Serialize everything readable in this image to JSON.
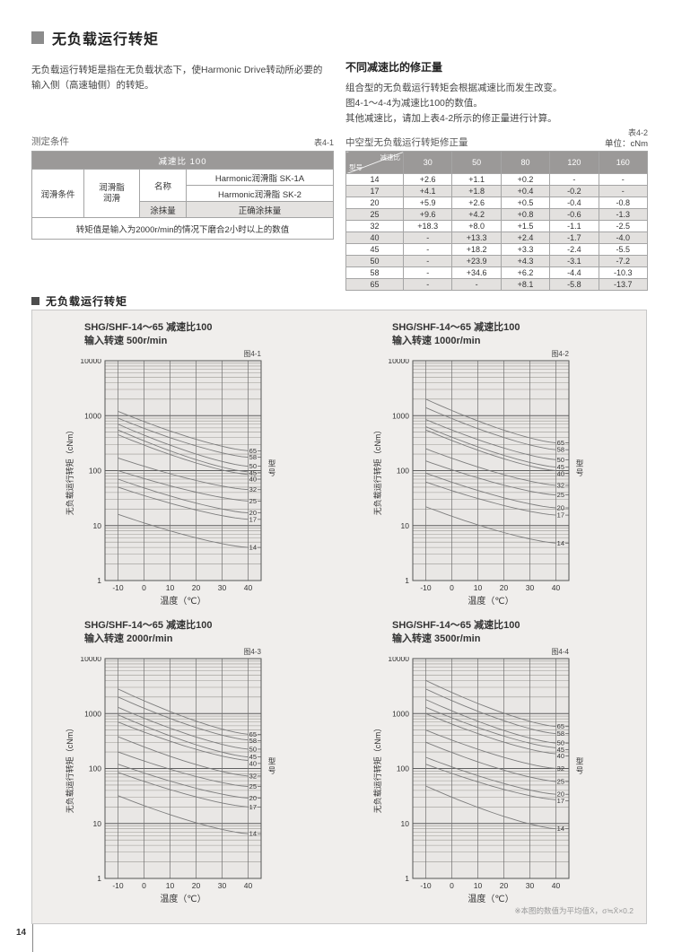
{
  "page": {
    "number": "14"
  },
  "header": {
    "title": "无负载运行转矩",
    "intro": "无负载运行转矩是指在无负载状态下，使Harmonic Drive转动所必要的输入侧（高速轴侧）的转矩。",
    "right_heading": "不同减速比的修正量",
    "right_lines": [
      "组合型的无负载运行转矩会根据减速比而发生改变。",
      "图4-1～4-4为减速比100的数值。",
      "其他减速比，请加上表4-2所示的修正量进行计算。"
    ]
  },
  "table1": {
    "label": "表4-1",
    "title": "测定条件",
    "header": "减速比 100",
    "col1": "润滑条件",
    "col2": "润滑脂\n润滑",
    "name_label": "名称",
    "name_values": [
      "Harmonic润滑脂 SK-1A",
      "Harmonic润滑脂 SK-2"
    ],
    "amount_label": "涂抹量",
    "amount_value": "正确涂抹量",
    "footer": "转矩值是输入为2000r/min的情况下磨合2小时以上的数值"
  },
  "table2": {
    "label": "表4-2",
    "title": "中空型无负载运行转矩修正量",
    "unit": "单位：cNm",
    "corner_top": "减速比",
    "corner_bottom": "型号",
    "columns": [
      "30",
      "50",
      "80",
      "120",
      "160"
    ],
    "rows": [
      {
        "model": "14",
        "values": [
          "+2.6",
          "+1.1",
          "+0.2",
          "-",
          "-"
        ]
      },
      {
        "model": "17",
        "values": [
          "+4.1",
          "+1.8",
          "+0.4",
          "-0.2",
          "-"
        ]
      },
      {
        "model": "20",
        "values": [
          "+5.9",
          "+2.6",
          "+0.5",
          "-0.4",
          "-0.8"
        ]
      },
      {
        "model": "25",
        "values": [
          "+9.6",
          "+4.2",
          "+0.8",
          "-0.6",
          "-1.3"
        ]
      },
      {
        "model": "32",
        "values": [
          "+18.3",
          "+8.0",
          "+1.5",
          "-1.1",
          "-2.5"
        ]
      },
      {
        "model": "40",
        "values": [
          "-",
          "+13.3",
          "+2.4",
          "-1.7",
          "-4.0"
        ]
      },
      {
        "model": "45",
        "values": [
          "-",
          "+18.2",
          "+3.3",
          "-2.4",
          "-5.5"
        ]
      },
      {
        "model": "50",
        "values": [
          "-",
          "+23.9",
          "+4.3",
          "-3.1",
          "-7.2"
        ]
      },
      {
        "model": "58",
        "values": [
          "-",
          "+34.6",
          "+6.2",
          "-4.4",
          "-10.3"
        ]
      },
      {
        "model": "65",
        "values": [
          "-",
          "-",
          "+8.1",
          "-5.8",
          "-13.7"
        ]
      }
    ]
  },
  "charts_section": {
    "heading": "无负载运行转矩",
    "footnote": "※本图的数值为平均值X̄，σ≒X̄×0.2"
  },
  "chart_data": [
    {
      "type": "line",
      "fig_label": "图4-1",
      "title_line1": "SHG/SHF-14～65 减速比100",
      "title_line2": "输入转速 500r/min",
      "xlabel": "温度（℃）",
      "ylabel": "无负载运行转矩（cNm）",
      "right_label": "型号",
      "xlim": [
        -15,
        45
      ],
      "x_ticks": [
        -10,
        0,
        10,
        20,
        30,
        40
      ],
      "ylim": [
        1,
        10000
      ],
      "yscale": "log",
      "y_ticks": [
        1,
        10,
        100,
        1000,
        10000
      ],
      "x": [
        -10,
        40
      ],
      "series": [
        {
          "name": "65",
          "values": [
            1200,
            230
          ]
        },
        {
          "name": "58",
          "values": [
            900,
            175
          ]
        },
        {
          "name": "50",
          "values": [
            700,
            120
          ]
        },
        {
          "name": "45",
          "values": [
            550,
            95
          ]
        },
        {
          "name": "40",
          "values": [
            450,
            85
          ]
        },
        {
          "name": "32",
          "values": [
            170,
            45
          ]
        },
        {
          "name": "25",
          "values": [
            100,
            28
          ]
        },
        {
          "name": "20",
          "values": [
            70,
            17
          ]
        },
        {
          "name": "17",
          "values": [
            50,
            13
          ]
        },
        {
          "name": "14",
          "values": [
            16,
            4
          ]
        }
      ]
    },
    {
      "type": "line",
      "fig_label": "图4-2",
      "title_line1": "SHG/SHF-14～65 减速比100",
      "title_line2": "输入转速 1000r/min",
      "xlabel": "温度（℃）",
      "ylabel": "无负载运行转矩（cNm）",
      "right_label": "型号",
      "xlim": [
        -15,
        45
      ],
      "x_ticks": [
        -10,
        0,
        10,
        20,
        30,
        40
      ],
      "ylim": [
        1,
        10000
      ],
      "yscale": "log",
      "y_ticks": [
        1,
        10,
        100,
        1000,
        10000
      ],
      "x": [
        -10,
        40
      ],
      "series": [
        {
          "name": "65",
          "values": [
            2000,
            320
          ]
        },
        {
          "name": "58",
          "values": [
            1400,
            240
          ]
        },
        {
          "name": "50",
          "values": [
            850,
            158
          ]
        },
        {
          "name": "45",
          "values": [
            630,
            116
          ]
        },
        {
          "name": "40",
          "values": [
            550,
            100
          ]
        },
        {
          "name": "32",
          "values": [
            250,
            54
          ]
        },
        {
          "name": "25",
          "values": [
            150,
            36
          ]
        },
        {
          "name": "20",
          "values": [
            90,
            21
          ]
        },
        {
          "name": "17",
          "values": [
            62,
            15.5
          ]
        },
        {
          "name": "14",
          "values": [
            22,
            4.8
          ]
        }
      ]
    },
    {
      "type": "line",
      "fig_label": "图4-3",
      "title_line1": "SHG/SHF-14～65 减速比100",
      "title_line2": "输入转速 2000r/min",
      "xlabel": "温度（℃）",
      "ylabel": "无负载运行转矩（cNm）",
      "right_label": "型号",
      "xlim": [
        -15,
        45
      ],
      "x_ticks": [
        -10,
        0,
        10,
        20,
        30,
        40
      ],
      "ylim": [
        1,
        10000
      ],
      "yscale": "log",
      "y_ticks": [
        1,
        10,
        100,
        1000,
        10000
      ],
      "x": [
        -10,
        40
      ],
      "series": [
        {
          "name": "65",
          "values": [
            2800,
            420
          ]
        },
        {
          "name": "58",
          "values": [
            2000,
            330
          ]
        },
        {
          "name": "50",
          "values": [
            1300,
            225
          ]
        },
        {
          "name": "45",
          "values": [
            950,
            162
          ]
        },
        {
          "name": "40",
          "values": [
            700,
            140
          ]
        },
        {
          "name": "32",
          "values": [
            380,
            73
          ]
        },
        {
          "name": "25",
          "values": [
            200,
            47
          ]
        },
        {
          "name": "20",
          "values": [
            120,
            29
          ]
        },
        {
          "name": "17",
          "values": [
            85,
            20
          ]
        },
        {
          "name": "14",
          "values": [
            32,
            6.5
          ]
        }
      ]
    },
    {
      "type": "line",
      "fig_label": "图4-4",
      "title_line1": "SHG/SHF-14～65 减速比100",
      "title_line2": "输入转速 3500r/min",
      "xlabel": "温度（℃）",
      "ylabel": "无负载运行转矩（cNm）",
      "right_label": "型号",
      "xlim": [
        -15,
        45
      ],
      "x_ticks": [
        -10,
        0,
        10,
        20,
        30,
        40
      ],
      "ylim": [
        1,
        10000
      ],
      "yscale": "log",
      "y_ticks": [
        1,
        10,
        100,
        1000,
        10000
      ],
      "x": [
        -10,
        40
      ],
      "series": [
        {
          "name": "65",
          "values": [
            4000,
            580
          ]
        },
        {
          "name": "58",
          "values": [
            2800,
            430
          ]
        },
        {
          "name": "50",
          "values": [
            1800,
            290
          ]
        },
        {
          "name": "45",
          "values": [
            1300,
            238
          ]
        },
        {
          "name": "40",
          "values": [
            1000,
            185
          ]
        },
        {
          "name": "32",
          "values": [
            500,
            100
          ]
        },
        {
          "name": "25",
          "values": [
            300,
            58
          ]
        },
        {
          "name": "20",
          "values": [
            160,
            34
          ]
        },
        {
          "name": "17",
          "values": [
            120,
            27
          ]
        },
        {
          "name": "14",
          "values": [
            48,
            8
          ]
        }
      ]
    }
  ]
}
